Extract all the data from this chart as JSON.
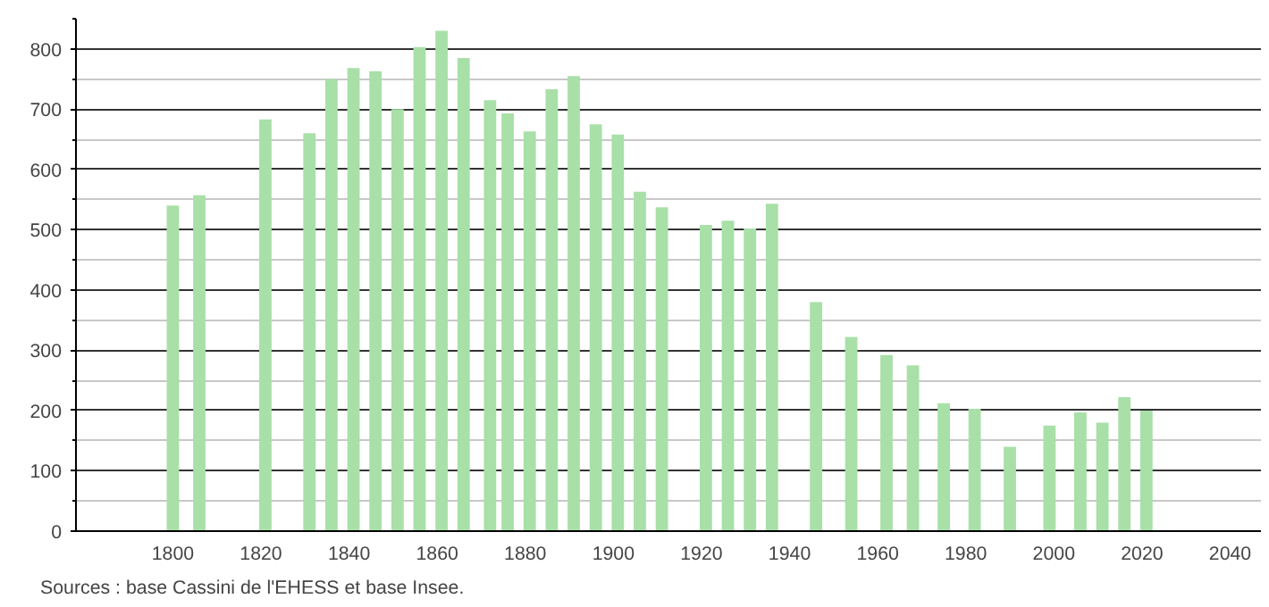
{
  "chart_data": {
    "type": "bar",
    "x": [
      1800,
      1806,
      1821,
      1831,
      1836,
      1841,
      1846,
      1851,
      1856,
      1861,
      1866,
      1872,
      1876,
      1881,
      1886,
      1891,
      1896,
      1901,
      1906,
      1911,
      1921,
      1926,
      1931,
      1936,
      1946,
      1954,
      1962,
      1968,
      1975,
      1982,
      1990,
      1999,
      2006,
      2011,
      2016,
      2021
    ],
    "values": [
      540,
      557,
      683,
      660,
      750,
      768,
      763,
      700,
      803,
      830,
      785,
      715,
      693,
      663,
      733,
      755,
      675,
      658,
      563,
      537,
      508,
      515,
      502,
      543,
      380,
      322,
      292,
      275,
      212,
      203,
      140,
      175,
      197,
      180,
      222,
      200
    ],
    "color": "#a8e0a8",
    "xlim": [
      1778,
      2047
    ],
    "xticks": [
      1800,
      1820,
      1840,
      1860,
      1880,
      1900,
      1920,
      1940,
      1960,
      1980,
      2000,
      2020,
      2040
    ],
    "ylim": [
      0,
      850
    ],
    "yticks": [
      0,
      100,
      200,
      300,
      400,
      500,
      600,
      700,
      800
    ],
    "grid": "y",
    "annotations": [
      "Sources : base Cassini de l'EHESS et base Insee."
    ]
  }
}
